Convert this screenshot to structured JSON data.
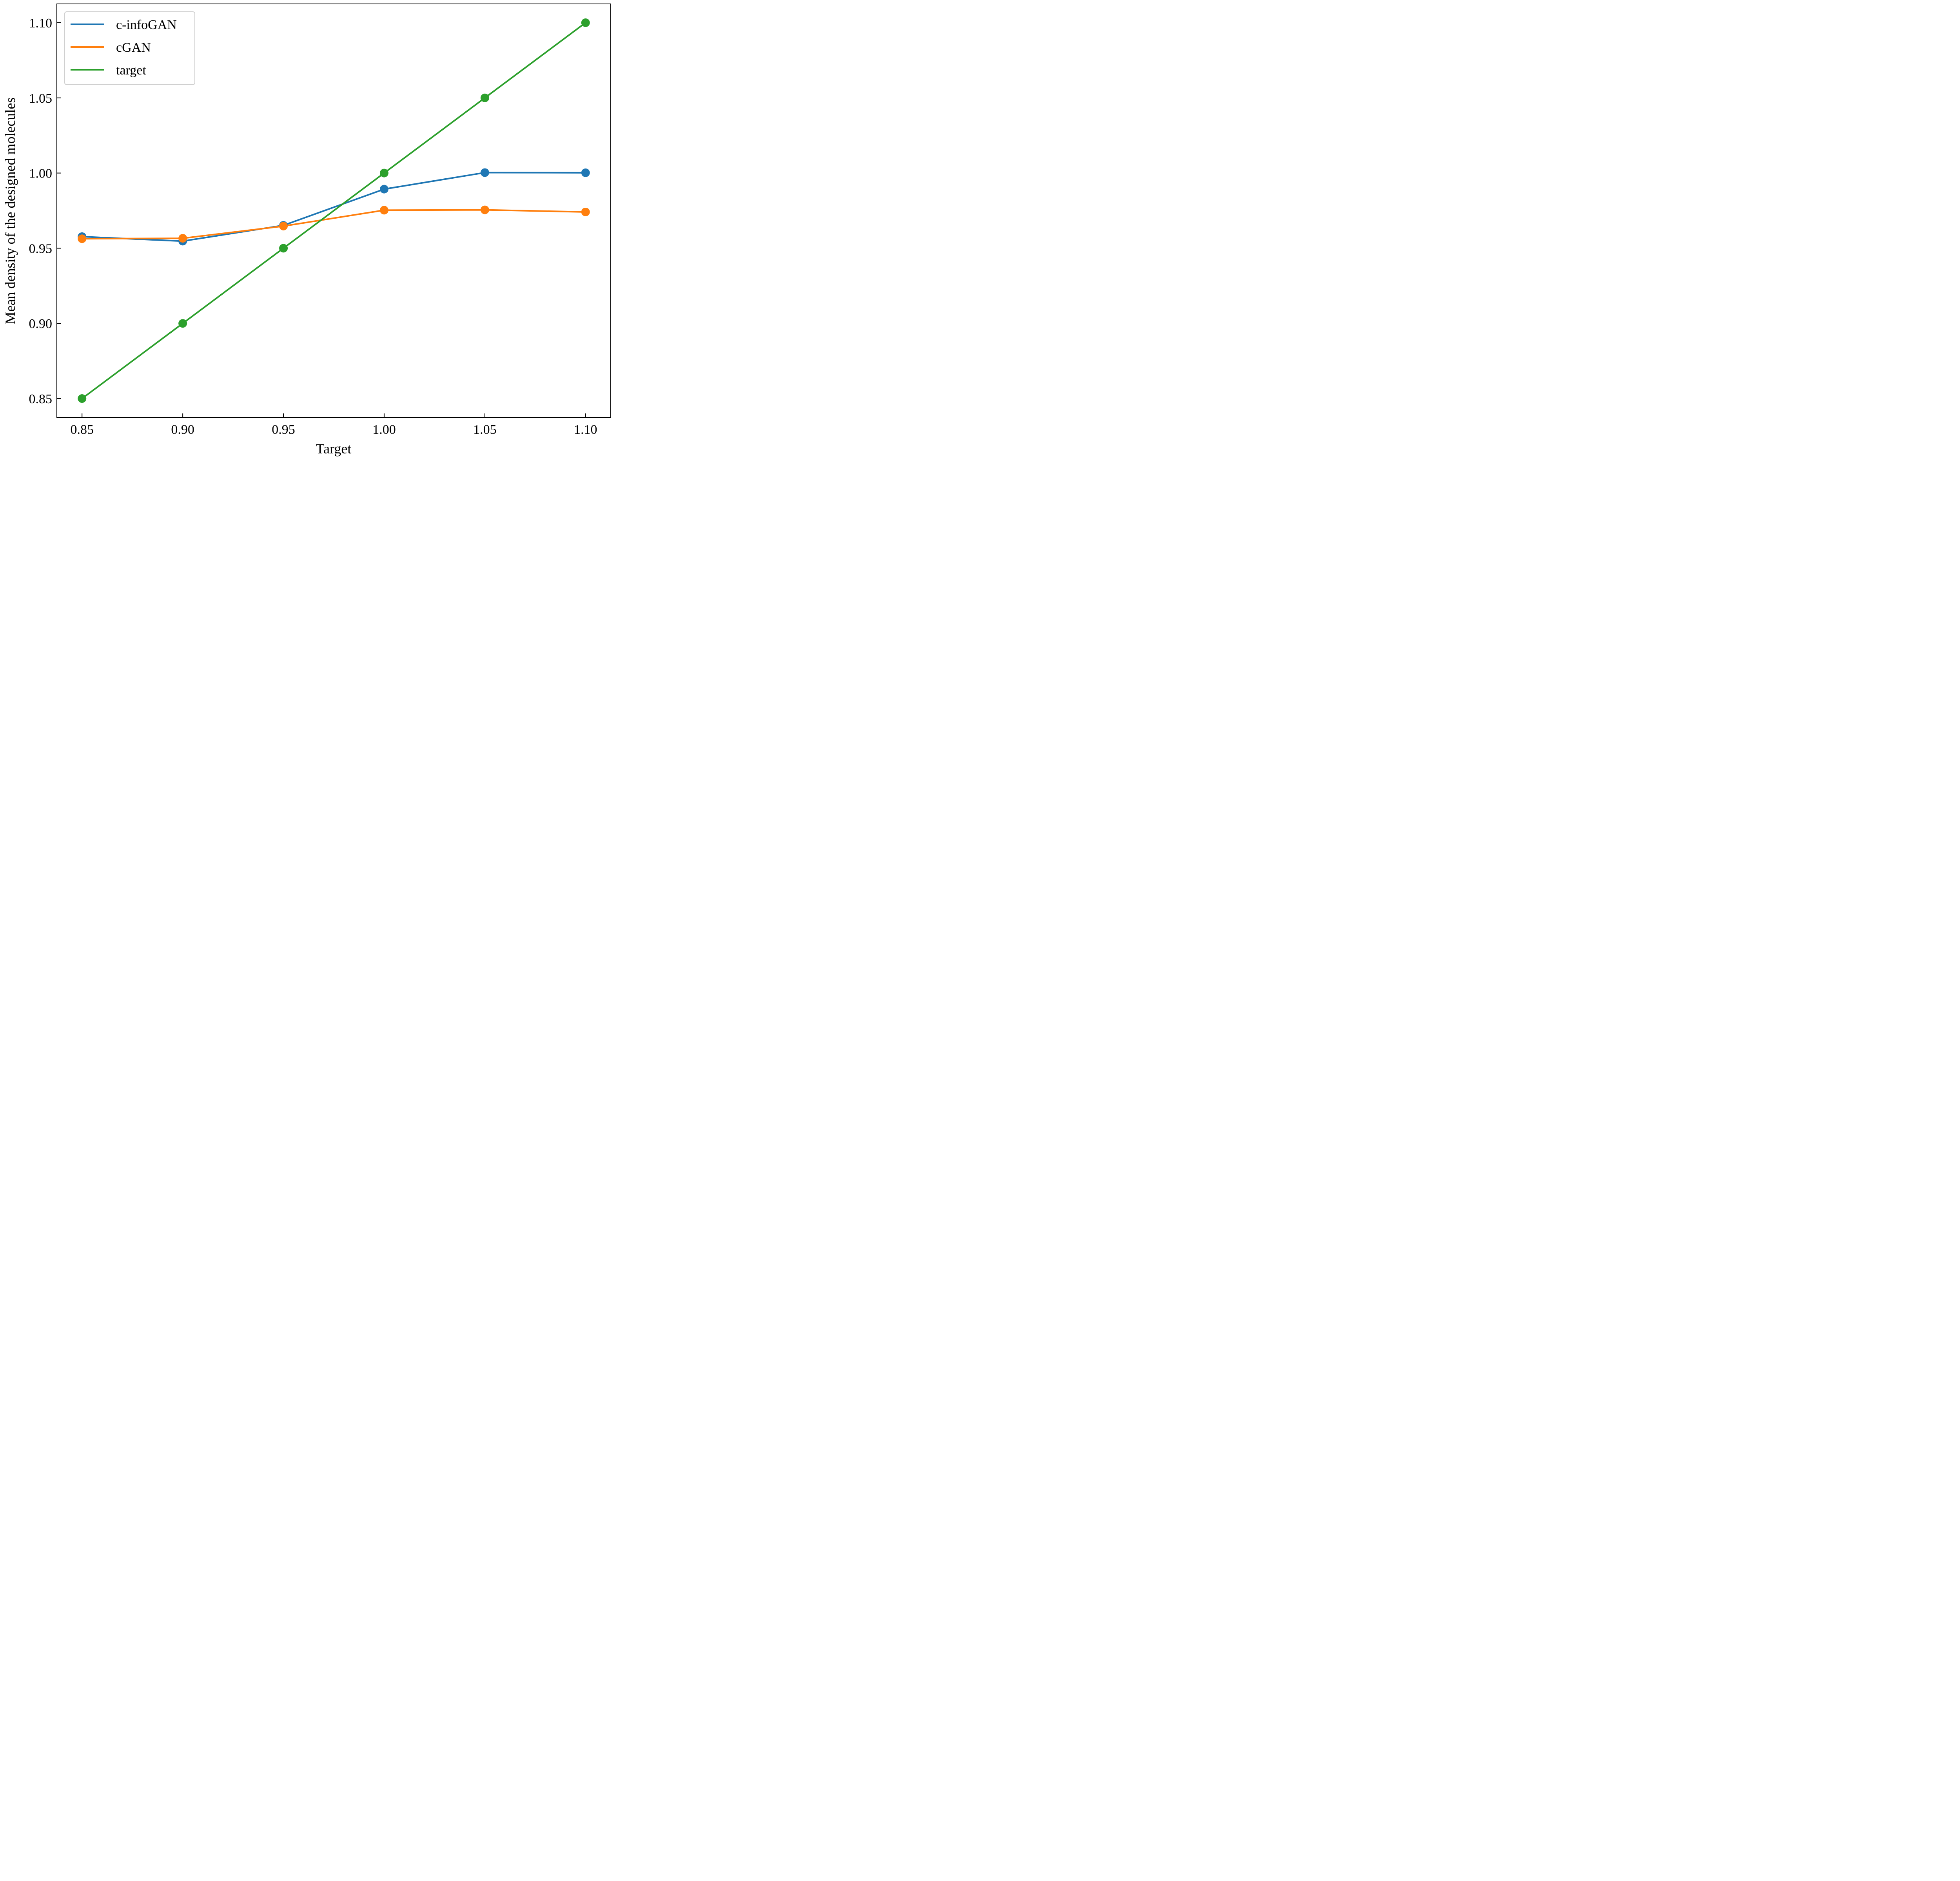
{
  "chart_data": {
    "type": "line",
    "xlabel": "Target",
    "ylabel": "Mean density of the designed molecules",
    "x": [
      0.85,
      0.9,
      0.95,
      1.0,
      1.05,
      1.1
    ],
    "xlim": [
      0.8375,
      1.1125
    ],
    "ylim": [
      0.8375,
      1.1125
    ],
    "xticks": [
      "0.85",
      "0.90",
      "0.95",
      "1.00",
      "1.05",
      "1.10"
    ],
    "yticks": [
      "0.85",
      "0.90",
      "0.95",
      "1.00",
      "1.05",
      "1.10"
    ],
    "grid": false,
    "legend_position": "top-left",
    "series": [
      {
        "name": "c-infoGAN",
        "color": "#1f77b4",
        "values": [
          0.9577,
          0.9547,
          0.9652,
          0.9893,
          1.0003,
          1.0002
        ]
      },
      {
        "name": "cGAN",
        "color": "#ff7f0e",
        "values": [
          0.9563,
          0.9566,
          0.9647,
          0.9753,
          0.9755,
          0.9741
        ]
      },
      {
        "name": "target",
        "color": "#2ca02c",
        "values": [
          0.85,
          0.9,
          0.95,
          1.0,
          1.05,
          1.1
        ]
      }
    ]
  }
}
